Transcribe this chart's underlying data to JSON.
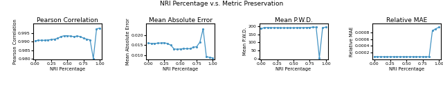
{
  "title": "NRI Percentage v.s. Metric Preservation",
  "subplots": [
    {
      "title": "Pearson Correlation",
      "xlabel": "NRI Percentage",
      "ylabel": "Pearson Correlation",
      "x": [
        0.0,
        0.05,
        0.1,
        0.15,
        0.2,
        0.25,
        0.3,
        0.35,
        0.4,
        0.45,
        0.5,
        0.55,
        0.6,
        0.65,
        0.7,
        0.75,
        0.8,
        0.85,
        0.9,
        0.95,
        1.0
      ],
      "y": [
        0.9905,
        0.9908,
        0.9908,
        0.9908,
        0.991,
        0.9912,
        0.9915,
        0.992,
        0.993,
        0.9935,
        0.9935,
        0.9932,
        0.993,
        0.9933,
        0.993,
        0.992,
        0.9915,
        0.991,
        0.98,
        0.9975,
        0.998
      ],
      "ylim": [
        0.9795,
        1.0005
      ],
      "yticks": [
        0.98,
        0.985,
        0.99,
        0.995
      ],
      "xticks": [
        0.0,
        0.25,
        0.5,
        0.75,
        1.0
      ]
    },
    {
      "title": "Mean Absolute Error",
      "xlabel": "NRI Percentage",
      "ylabel": "Mean Absolute Error",
      "x": [
        0.0,
        0.05,
        0.1,
        0.15,
        0.2,
        0.25,
        0.3,
        0.35,
        0.4,
        0.45,
        0.5,
        0.55,
        0.6,
        0.65,
        0.7,
        0.75,
        0.8,
        0.85,
        0.9,
        0.95,
        1.0
      ],
      "y": [
        0.016,
        0.0159,
        0.0159,
        0.016,
        0.0161,
        0.0162,
        0.0158,
        0.015,
        0.0132,
        0.013,
        0.0132,
        0.0133,
        0.0133,
        0.0133,
        0.014,
        0.0143,
        0.0165,
        0.023,
        0.0095,
        0.009,
        0.0088
      ],
      "ylim": [
        0.008,
        0.0255
      ],
      "yticks": [
        0.01,
        0.015,
        0.02
      ],
      "xticks": [
        0.0,
        0.25,
        0.5,
        0.75,
        1.0
      ]
    },
    {
      "title": "Mean P.W.D.",
      "xlabel": "NRI Percentage",
      "ylabel": "Mean P.W.D.",
      "x": [
        0.0,
        0.05,
        0.1,
        0.15,
        0.2,
        0.25,
        0.3,
        0.35,
        0.4,
        0.45,
        0.5,
        0.55,
        0.6,
        0.65,
        0.7,
        0.75,
        0.8,
        0.85,
        0.9,
        0.95,
        1.0
      ],
      "y": [
        185,
        192,
        192,
        191,
        191,
        191,
        190,
        190,
        190,
        190,
        190,
        191,
        191,
        191,
        192,
        193,
        194,
        194,
        5,
        190,
        195
      ],
      "ylim": [
        -5,
        215
      ],
      "yticks": [
        0,
        50,
        100,
        150,
        200
      ],
      "xticks": [
        0.0,
        0.25,
        0.5,
        0.75,
        1.0
      ]
    },
    {
      "title": "Relative MAE",
      "xlabel": "NRI Percentage",
      "ylabel": "Relative MAE",
      "x": [
        0.0,
        0.05,
        0.1,
        0.15,
        0.2,
        0.25,
        0.3,
        0.35,
        0.4,
        0.45,
        0.5,
        0.55,
        0.6,
        0.65,
        0.7,
        0.75,
        0.8,
        0.85,
        0.9,
        0.95,
        1.0
      ],
      "y": [
        8.5e-05,
        8.2e-05,
        8e-05,
        8e-05,
        8e-05,
        8e-05,
        8e-05,
        8e-05,
        8e-05,
        8e-05,
        8e-05,
        8e-05,
        8e-05,
        8e-05,
        8e-05,
        8e-05,
        8e-05,
        8e-05,
        0.00085,
        0.0009,
        0.00095
      ],
      "ylim": [
        0.0,
        0.00105
      ],
      "yticks": [
        0.0002,
        0.0004,
        0.0006,
        0.0008
      ],
      "xticks": [
        0.0,
        0.25,
        0.5,
        0.75,
        1.0
      ]
    }
  ],
  "line_color": "#4393c3",
  "marker": ".",
  "markersize": 2.5,
  "linewidth": 0.9,
  "title_fontsize": 6.5,
  "suptitle_fontsize": 6.5,
  "label_fontsize": 4.8,
  "tick_fontsize": 4.5
}
